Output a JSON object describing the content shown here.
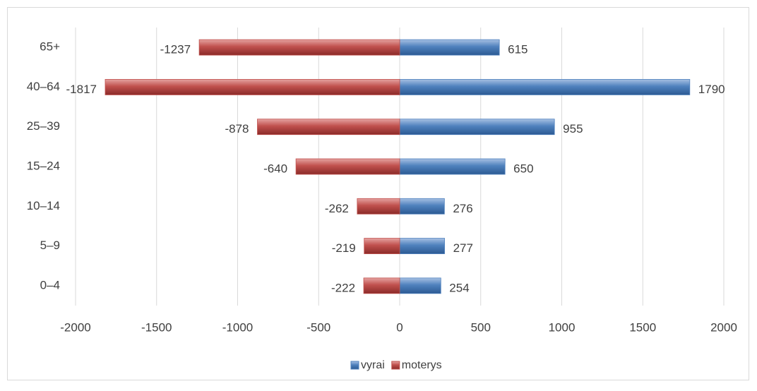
{
  "chart_data": {
    "type": "bar",
    "orientation": "horizontal",
    "categories": [
      "0–4",
      "5–9",
      "10–14",
      "15–24",
      "25–39",
      "40–64",
      "65+"
    ],
    "series": [
      {
        "name": "vyrai",
        "color": "#4f81bd",
        "values": [
          254,
          277,
          276,
          650,
          955,
          1790,
          615
        ]
      },
      {
        "name": "moterys",
        "color": "#c0504d",
        "values": [
          -222,
          -219,
          -262,
          -640,
          -878,
          -1817,
          -1237
        ]
      }
    ],
    "xlim": [
      -2000,
      2000
    ],
    "xticks": [
      -2000,
      -1500,
      -1000,
      -500,
      0,
      500,
      1000,
      1500,
      2000
    ],
    "grid": true,
    "legend": "bottom"
  }
}
